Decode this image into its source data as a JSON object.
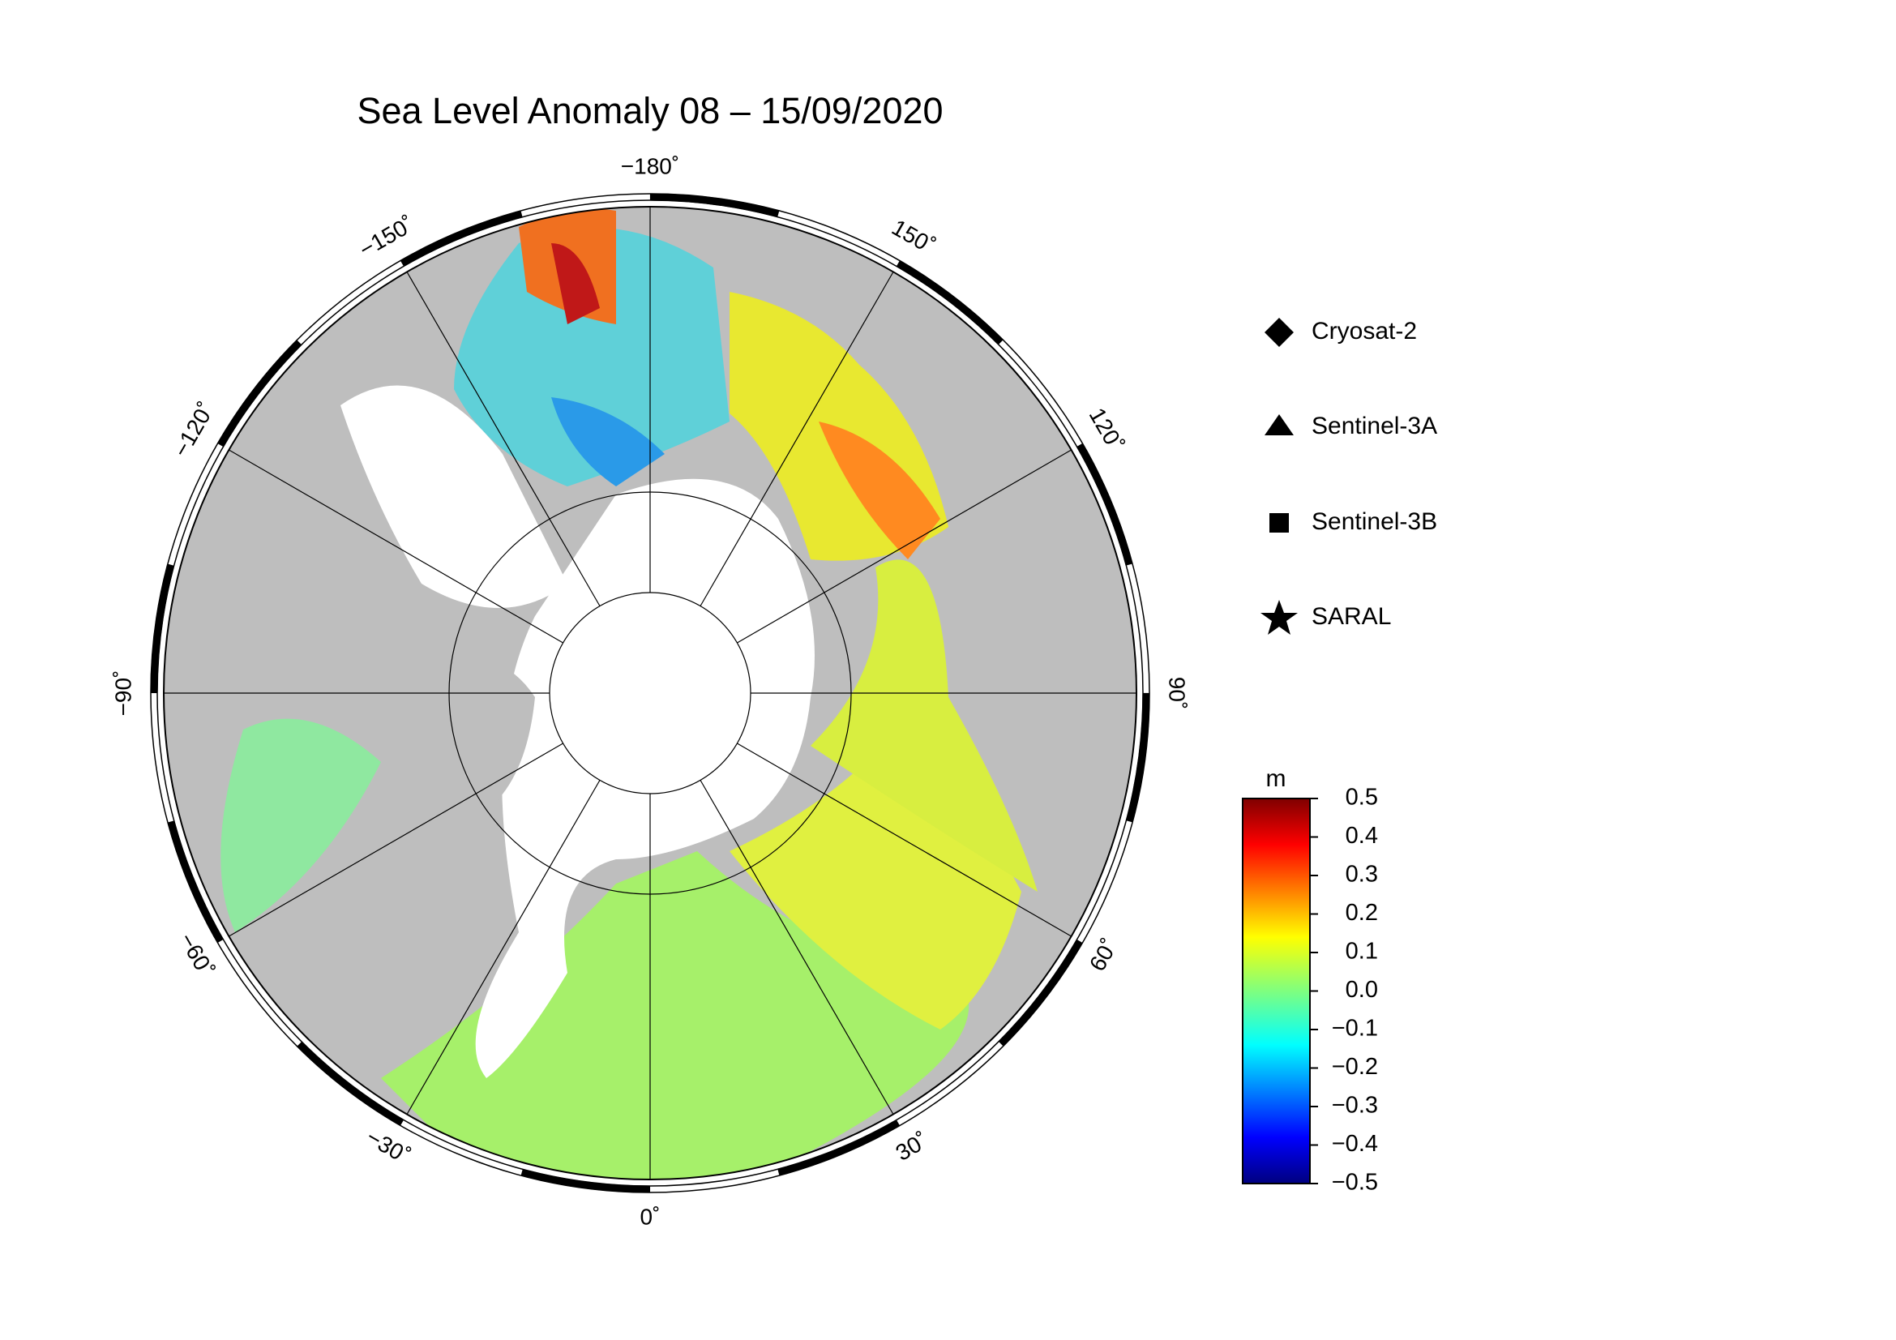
{
  "map": {
    "title": "Sea Level Anomaly 08 – 15/09/2020",
    "longitude_labels": [
      {
        "value": -180,
        "label": "−180˚"
      },
      {
        "value": -150,
        "label": "−150˚"
      },
      {
        "value": -120,
        "label": "−120˚"
      },
      {
        "value": -90,
        "label": "−90˚"
      },
      {
        "value": -60,
        "label": "−60˚"
      },
      {
        "value": -30,
        "label": "−30˚"
      },
      {
        "value": 0,
        "label": "0˚"
      },
      {
        "value": 30,
        "label": "30˚"
      },
      {
        "value": 60,
        "label": "60˚"
      },
      {
        "value": 90,
        "label": "90˚"
      },
      {
        "value": 120,
        "label": "120˚"
      },
      {
        "value": 150,
        "label": "150˚"
      }
    ],
    "legend": [
      "Cryosat-2",
      "Sentinel-3A",
      "Sentinel-3B",
      "SARAL"
    ],
    "colorbar": {
      "unit": "m",
      "range": [
        -0.5,
        0.5
      ],
      "ticks": [
        0.5,
        0.4,
        0.3,
        0.2,
        0.1,
        {
          "value": 0,
          "label": "0.0"
        },
        {
          "value": -0.1,
          "label": "−0.1"
        },
        {
          "value": -0.2,
          "label": "−0.2"
        },
        {
          "value": -0.3,
          "label": "−0.3"
        },
        {
          "value": -0.4,
          "label": "−0.4"
        },
        {
          "value": -0.5,
          "label": "−0.5"
        }
      ]
    }
  }
}
